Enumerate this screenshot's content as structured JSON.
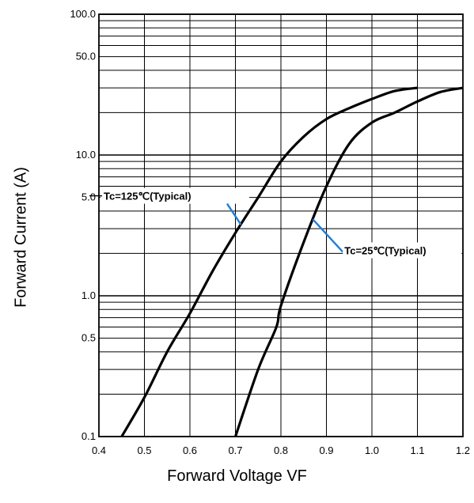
{
  "chart_data": {
    "type": "line",
    "title": "",
    "xlabel": "Forward Voltage VF",
    "ylabel": "Forward Current (A)",
    "xlim": [
      0.4,
      1.2
    ],
    "ylim": [
      0.1,
      100
    ],
    "yscale": "log",
    "grid": true,
    "x_ticks": [
      "0.4",
      "0.5",
      "0.6",
      "0.7",
      "0.8",
      "0.9",
      "1.0",
      "1.1",
      "1.2"
    ],
    "y_ticks": [
      "0.1",
      "0.5",
      "1.0",
      "5.0",
      "10.0",
      "50.0",
      "100.0"
    ],
    "series": [
      {
        "name": "Tc=125℃(Typical)",
        "x": [
          0.45,
          0.5,
          0.55,
          0.6,
          0.65,
          0.7,
          0.75,
          0.8,
          0.85,
          0.9,
          0.95,
          1.0,
          1.05,
          1.1
        ],
        "y": [
          0.1,
          0.19,
          0.4,
          0.75,
          1.5,
          2.8,
          5.0,
          9.0,
          13.5,
          18.0,
          21.5,
          25.0,
          28.5,
          30.0
        ]
      },
      {
        "name": "Tc=25℃(Typical)",
        "x": [
          0.7,
          0.75,
          0.79,
          0.8,
          0.85,
          0.9,
          0.95,
          1.0,
          1.05,
          1.1,
          1.15,
          1.2
        ],
        "y": [
          0.1,
          0.3,
          0.6,
          0.85,
          2.4,
          6.0,
          12.0,
          17.0,
          20.0,
          24.0,
          28.0,
          30.0
        ]
      }
    ],
    "annotations": [
      {
        "text": "Tc=125℃(Typical)",
        "series": 0,
        "x": 0.7,
        "y": 3.2
      },
      {
        "text": "Tc=25℃(Typical)",
        "series": 1,
        "x": 0.87,
        "y": 3.5
      }
    ]
  }
}
